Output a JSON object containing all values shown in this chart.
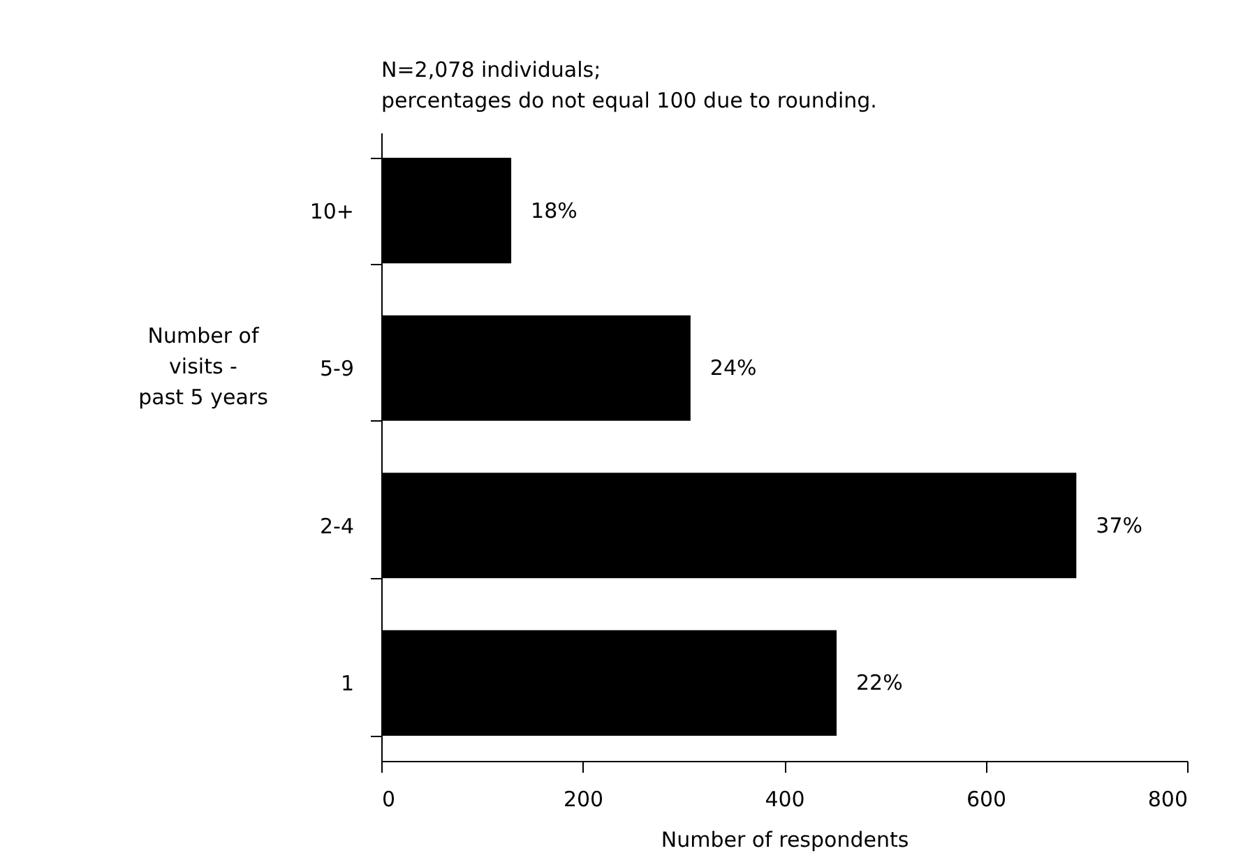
{
  "chart_data": {
    "type": "bar",
    "orientation": "horizontal",
    "xlabel": "Number of respondents",
    "ylabel": "Number of visits - past 5 years",
    "annotations": [
      "N=2,078 individuals;",
      "percentages do not equal 100 due to rounding.",
      {
        "text": "18%",
        "x": 129,
        "y": "10+"
      },
      {
        "text": "24%",
        "x": 307,
        "y": "5-9"
      },
      {
        "text": "37%",
        "x": 690,
        "y": "2-4"
      },
      {
        "text": "22%",
        "x": 452,
        "y": "1"
      }
    ],
    "categories": [
      "10+",
      "5-9",
      "2-4",
      "1"
    ],
    "values": [
      129,
      307,
      690,
      452
    ],
    "color": "#000000",
    "xlim": [
      0,
      800
    ],
    "xticks": [
      0,
      200,
      400,
      600,
      800
    ],
    "grid": false
  }
}
